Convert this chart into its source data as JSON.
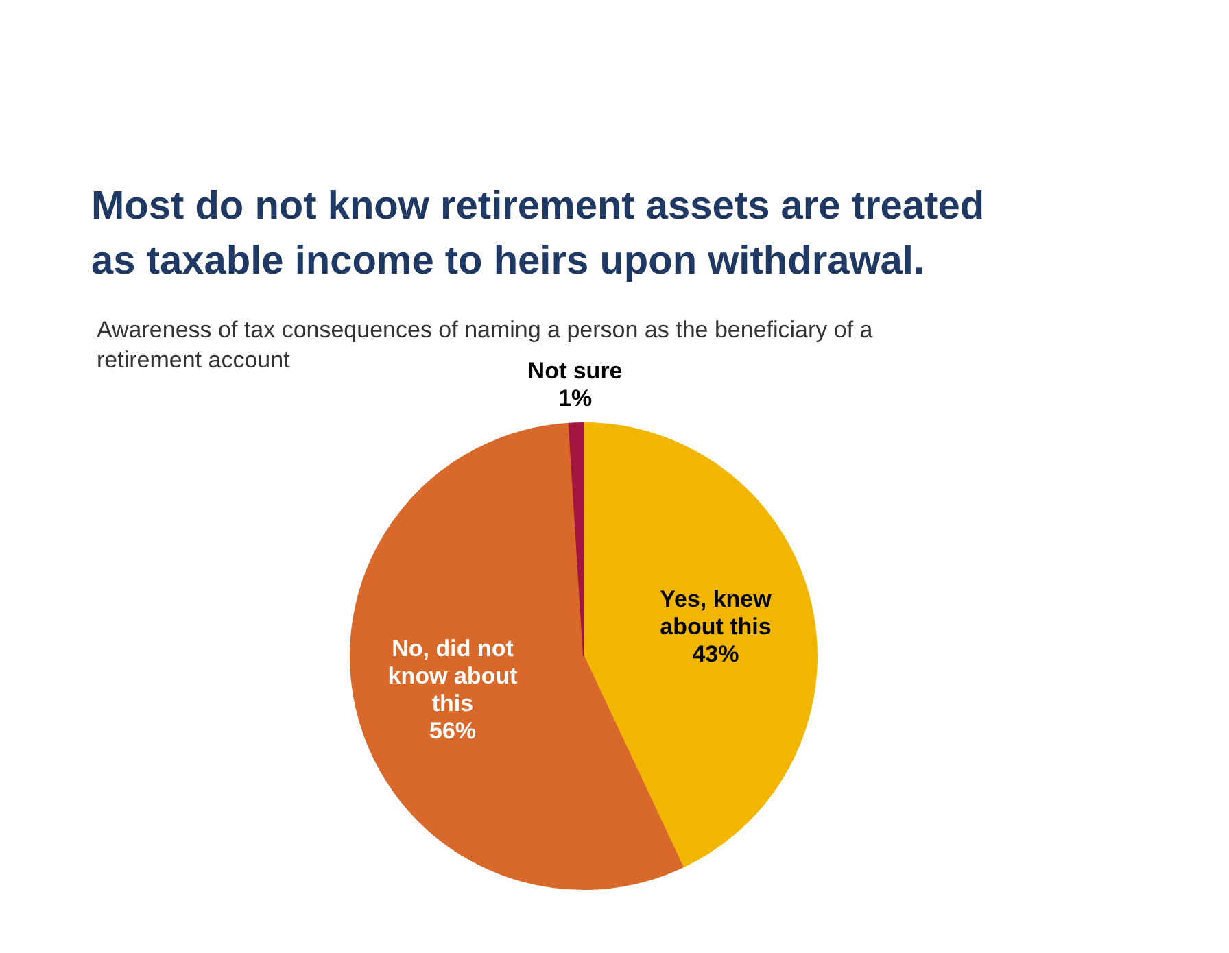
{
  "chart_data": {
    "type": "pie",
    "title": "Most do not know retirement assets are treated as taxable income to heirs upon withdrawal.",
    "subtitle": "Awareness of tax consequences of naming a person as the beneficiary of a retirement account",
    "categories": [
      "Yes, knew about this",
      "No, did not know about this",
      "Not sure"
    ],
    "values": [
      43,
      56,
      1
    ],
    "colors": [
      "#f2b600",
      "#d8692a",
      "#a3163f"
    ],
    "value_labels": [
      "43%",
      "56%",
      "1%"
    ]
  }
}
